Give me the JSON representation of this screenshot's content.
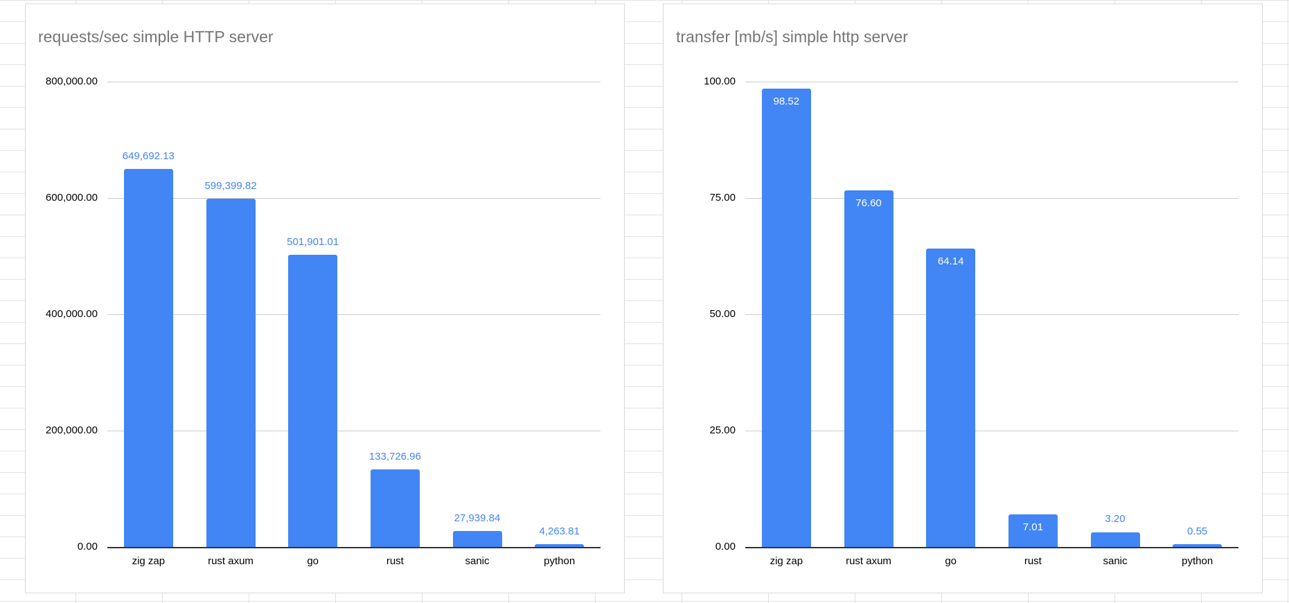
{
  "colors": {
    "bar": "#4285f4",
    "label_above": "#4285f4",
    "label_inside": "#ffffff",
    "title": "#757575",
    "axis_text": "#000000",
    "gridline": "#cccccc",
    "baseline": "#333333",
    "sheet_gridline": "#e2e2e2",
    "panel_border": "#d9d9d9"
  },
  "chart_data": [
    {
      "type": "bar",
      "title": "requests/sec simple HTTP server",
      "categories": [
        "zig zap",
        "rust axum",
        "go",
        "rust",
        "sanic",
        "python"
      ],
      "values": [
        649692.13,
        599399.82,
        501901.01,
        133726.96,
        27939.84,
        4263.81
      ],
      "value_labels": [
        "649,692.13",
        "599,399.82",
        "501,901.01",
        "133,726.96",
        "27,939.84",
        "4,263.81"
      ],
      "label_positions": [
        "above",
        "above",
        "above",
        "above",
        "above",
        "above"
      ],
      "ylim": [
        0,
        800000
      ],
      "ytick_values": [
        0,
        200000,
        400000,
        600000,
        800000
      ],
      "yticks": [
        "0.00",
        "200,000.00",
        "400,000.00",
        "600,000.00",
        "800,000.00"
      ],
      "xlabel": "",
      "ylabel": "",
      "grid": true,
      "legend": "none"
    },
    {
      "type": "bar",
      "title": "transfer [mb/s] simple http server",
      "categories": [
        "zig zap",
        "rust axum",
        "go",
        "rust",
        "sanic",
        "python"
      ],
      "values": [
        98.52,
        76.6,
        64.14,
        7.01,
        3.2,
        0.55
      ],
      "value_labels": [
        "98.52",
        "76.60",
        "64.14",
        "7.01",
        "3.20",
        "0.55"
      ],
      "label_positions": [
        "inside",
        "inside",
        "inside",
        "inside",
        "above",
        "above"
      ],
      "ylim": [
        0,
        100
      ],
      "ytick_values": [
        0,
        25,
        50,
        75,
        100
      ],
      "yticks": [
        "0.00",
        "25.00",
        "50.00",
        "75.00",
        "100.00"
      ],
      "xlabel": "",
      "ylabel": "",
      "grid": true,
      "legend": "none"
    }
  ]
}
